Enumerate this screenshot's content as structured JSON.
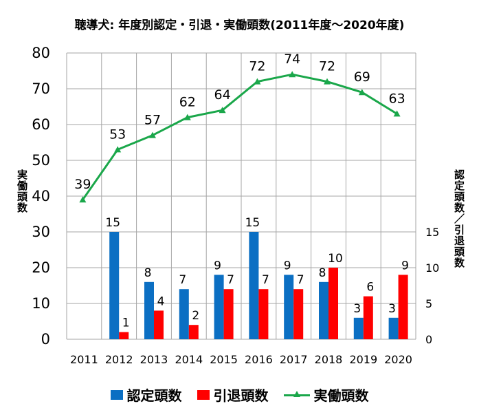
{
  "title": "聴導犬: 年度別認定・引退・実働頭数(2011年度～2020年度)",
  "left_axis_label": "実働頭数",
  "right_axis_label": "認定頭数／引退頭数",
  "legend": [
    {
      "label": "認定頭数",
      "color": "#0b6fc3",
      "kind": "bar"
    },
    {
      "label": "引退頭数",
      "color": "#ff0000",
      "kind": "bar"
    },
    {
      "label": "実働頭数",
      "color": "#1aa74a",
      "kind": "line"
    }
  ],
  "chart_data": {
    "type": "bar+line",
    "title": "聴導犬: 年度別認定・引退・実働頭数(2011年度～2020年度)",
    "categories": [
      "2011",
      "2012",
      "2013",
      "2014",
      "2015",
      "2016",
      "2017",
      "2018",
      "2019",
      "2020"
    ],
    "left_axis": {
      "label": "実働頭数",
      "ylim": [
        0,
        80
      ],
      "ticks": [
        0,
        10,
        20,
        30,
        40,
        50,
        60,
        70,
        80
      ]
    },
    "right_axis": {
      "label": "認定頭数／引退頭数",
      "ylim": [
        0,
        40
      ],
      "ticks": [
        0,
        5,
        10,
        15
      ]
    },
    "grid": true,
    "legend_position": "bottom",
    "series": [
      {
        "name": "認定頭数",
        "type": "bar",
        "axis": "right",
        "color": "#0b6fc3",
        "values": [
          null,
          15,
          8,
          7,
          9,
          15,
          9,
          8,
          3,
          3
        ]
      },
      {
        "name": "引退頭数",
        "type": "bar",
        "axis": "right",
        "color": "#ff0000",
        "values": [
          null,
          1,
          4,
          2,
          7,
          7,
          7,
          10,
          6,
          9
        ]
      },
      {
        "name": "実働頭数",
        "type": "line",
        "axis": "left",
        "color": "#1aa74a",
        "marker": "triangle",
        "values": [
          39,
          53,
          57,
          62,
          64,
          72,
          74,
          72,
          69,
          63
        ]
      }
    ]
  }
}
